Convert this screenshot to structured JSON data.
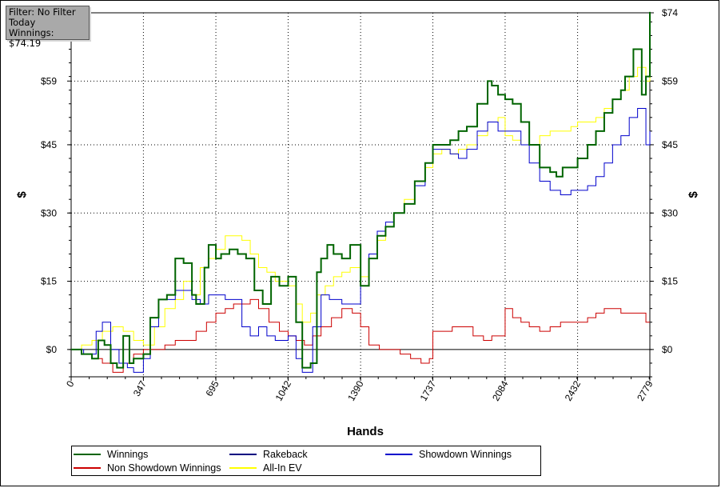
{
  "info_box": {
    "filter": "Filter: No Filter",
    "period": "Today",
    "winnings": "Winnings: $74.19"
  },
  "chart_data": {
    "type": "line",
    "xlabel": "Hands",
    "ylabel_left": "$",
    "ylabel_right": "$",
    "xlim": [
      0,
      2779
    ],
    "ylim": [
      -6,
      74
    ],
    "x_ticks": [
      "0",
      "347",
      "695",
      "1042",
      "1390",
      "1737",
      "2084",
      "2432",
      "2779"
    ],
    "x_tick_values": [
      0,
      347,
      695,
      1042,
      1390,
      1737,
      2084,
      2432,
      2779
    ],
    "y_ticks": [
      "$0",
      "$15",
      "$30",
      "$45",
      "$59",
      "$74"
    ],
    "y_tick_values": [
      0,
      15,
      30,
      45,
      59,
      74
    ],
    "grid": true,
    "legend_position": "bottom",
    "series": [
      {
        "name": "Winnings",
        "color": "#006400",
        "x": [
          0,
          50,
          100,
          130,
          160,
          190,
          220,
          250,
          280,
          300,
          347,
          380,
          420,
          460,
          500,
          540,
          580,
          600,
          640,
          660,
          695,
          720,
          760,
          800,
          840,
          880,
          920,
          960,
          1000,
          1042,
          1080,
          1110,
          1150,
          1180,
          1200,
          1230,
          1260,
          1300,
          1340,
          1390,
          1430,
          1470,
          1510,
          1550,
          1600,
          1650,
          1700,
          1737,
          1780,
          1820,
          1860,
          1900,
          1950,
          2000,
          2020,
          2050,
          2084,
          2120,
          2160,
          2200,
          2250,
          2300,
          2330,
          2360,
          2400,
          2432,
          2480,
          2520,
          2560,
          2600,
          2640,
          2660,
          2700,
          2740,
          2760,
          2779
        ],
        "y": [
          0,
          -1,
          -2,
          2,
          1,
          -3,
          -4,
          3,
          -3,
          -2,
          -1,
          7,
          11,
          12,
          20,
          19,
          12,
          10,
          18,
          23,
          20,
          21,
          22,
          21,
          20,
          13,
          10,
          16,
          14,
          16,
          6,
          -4,
          -3,
          17,
          20,
          23,
          21,
          20,
          23,
          14,
          20,
          25,
          27,
          30,
          32,
          37,
          41,
          45,
          45,
          46,
          48,
          49,
          54,
          59,
          58,
          56,
          55,
          54,
          50,
          45,
          40,
          39,
          38,
          40,
          40,
          42,
          45,
          48,
          52,
          55,
          57,
          60,
          66,
          56,
          60,
          74.19
        ]
      },
      {
        "name": "Rakeback",
        "color": "#000080",
        "x": [
          0,
          2779
        ],
        "y": [
          0,
          0
        ],
        "hidden_zero": true
      },
      {
        "name": "Showdown Winnings",
        "color": "#0000cc",
        "x": [
          0,
          60,
          120,
          150,
          190,
          230,
          270,
          300,
          347,
          380,
          420,
          460,
          500,
          540,
          580,
          620,
          660,
          695,
          740,
          780,
          820,
          860,
          900,
          940,
          980,
          1042,
          1080,
          1110,
          1160,
          1200,
          1240,
          1300,
          1350,
          1390,
          1430,
          1470,
          1510,
          1550,
          1600,
          1650,
          1700,
          1737,
          1780,
          1820,
          1860,
          1900,
          1950,
          2000,
          2050,
          2084,
          2120,
          2160,
          2200,
          2250,
          2300,
          2350,
          2400,
          2432,
          2480,
          2520,
          2560,
          2600,
          2640,
          2680,
          2720,
          2760,
          2779
        ],
        "y": [
          0,
          -1,
          4,
          6,
          0,
          -3,
          -4,
          -5,
          -2,
          5,
          11,
          11,
          13,
          13,
          11,
          10,
          12,
          12,
          11,
          11,
          5,
          3,
          5,
          3,
          2,
          3,
          -2,
          -5,
          5,
          12,
          11,
          10,
          10,
          14,
          21,
          26,
          28,
          30,
          32,
          36,
          41,
          44,
          44,
          43,
          42,
          44,
          48,
          50,
          48,
          48,
          48,
          45,
          41,
          37,
          35,
          34,
          35,
          35,
          36,
          38,
          41,
          45,
          47,
          51,
          53,
          45,
          48
        ]
      },
      {
        "name": "Non Showdown Winnings",
        "color": "#cc0000",
        "x": [
          0,
          50,
          100,
          150,
          200,
          250,
          300,
          347,
          400,
          450,
          500,
          550,
          600,
          650,
          695,
          740,
          780,
          820,
          860,
          900,
          950,
          1000,
          1042,
          1080,
          1120,
          1160,
          1200,
          1250,
          1300,
          1350,
          1390,
          1430,
          1480,
          1530,
          1580,
          1630,
          1680,
          1720,
          1737,
          1780,
          1830,
          1880,
          1930,
          1980,
          2020,
          2060,
          2084,
          2120,
          2160,
          2200,
          2250,
          2300,
          2350,
          2400,
          2432,
          2480,
          2520,
          2560,
          2600,
          2640,
          2680,
          2720,
          2760,
          2779
        ],
        "y": [
          0,
          -1,
          -2,
          -3,
          -5,
          -3,
          -1,
          0,
          0,
          1,
          2,
          2,
          4,
          6,
          8,
          9,
          10,
          10,
          11,
          9,
          6,
          4,
          3,
          2,
          1,
          3,
          5,
          7,
          9,
          8,
          5,
          1,
          0,
          0,
          -1,
          -2,
          -3,
          -2,
          4,
          4,
          5,
          5,
          3,
          2,
          3,
          3,
          9,
          7,
          6,
          5,
          4,
          5,
          6,
          6,
          6,
          7,
          8,
          9,
          9,
          8,
          8,
          8,
          6,
          6
        ]
      },
      {
        "name": "All-In EV",
        "color": "#ffff00",
        "x": [
          0,
          50,
          100,
          150,
          200,
          250,
          300,
          347,
          400,
          450,
          500,
          540,
          580,
          620,
          660,
          695,
          740,
          780,
          820,
          860,
          900,
          940,
          980,
          1042,
          1080,
          1110,
          1150,
          1180,
          1220,
          1260,
          1300,
          1340,
          1390,
          1430,
          1470,
          1510,
          1550,
          1600,
          1650,
          1700,
          1737,
          1780,
          1820,
          1860,
          1900,
          1950,
          2000,
          2050,
          2084,
          2120,
          2160,
          2200,
          2250,
          2300,
          2350,
          2400,
          2432,
          2480,
          2520,
          2560,
          2600,
          2640,
          2680,
          2720,
          2760,
          2779
        ],
        "y": [
          0,
          1,
          2,
          4,
          5,
          4,
          2,
          1,
          5,
          9,
          11,
          15,
          12,
          18,
          20,
          22,
          25,
          25,
          24,
          21,
          18,
          17,
          15,
          14,
          10,
          6,
          8,
          12,
          14,
          16,
          17,
          18,
          16,
          20,
          24,
          27,
          30,
          33,
          37,
          40,
          43,
          44,
          43,
          44,
          45,
          47,
          50,
          51,
          47,
          46,
          45,
          45,
          47,
          48,
          48,
          49,
          50,
          50,
          51,
          53,
          55,
          57,
          60,
          62,
          59,
          60
        ]
      }
    ]
  },
  "legend": {
    "items": [
      {
        "label": "Winnings",
        "color": "#006400"
      },
      {
        "label": "Rakeback",
        "color": "#000080"
      },
      {
        "label": "Showdown Winnings",
        "color": "#0000cc"
      },
      {
        "label": "Non Showdown Winnings",
        "color": "#cc0000"
      },
      {
        "label": "All-In EV",
        "color": "#ffff00"
      }
    ]
  }
}
